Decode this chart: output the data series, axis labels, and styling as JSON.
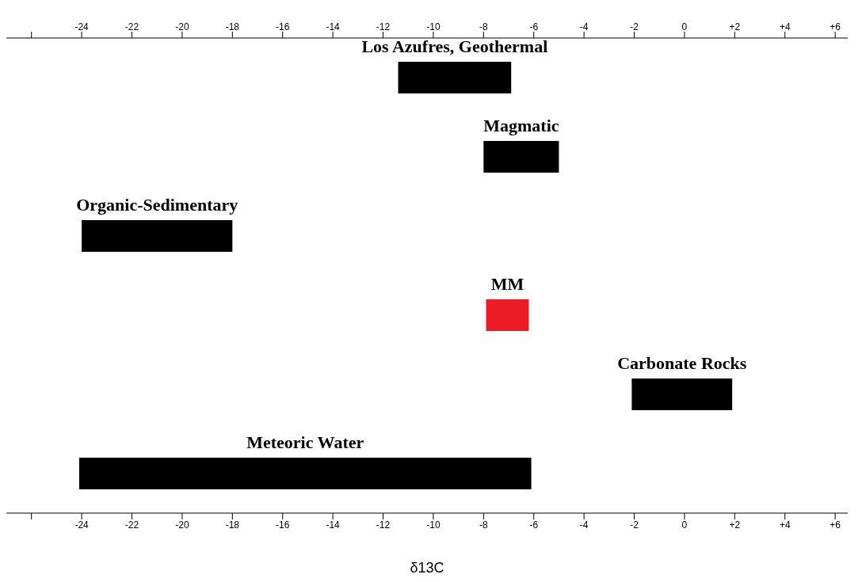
{
  "chart_data": {
    "type": "bar",
    "orientation": "horizontal",
    "xlabel": "δ13C",
    "categories": [
      "Los Azufres, Geothermal",
      "Magmatic",
      "Organic-Sedimentary",
      "MM",
      "Carbonate Rocks",
      "Meteoric Water"
    ],
    "base": [
      -11.4,
      -8,
      -24,
      -7.9,
      -2.1,
      -24.1
    ],
    "values": [
      4.5,
      3,
      6,
      1.7,
      4,
      18
    ],
    "colors": [
      "#000000",
      "#000000",
      "#000000",
      "#ed1c24",
      "#000000",
      "#000000"
    ],
    "xlim": [
      -27,
      6.5
    ],
    "xticks": [
      {
        "value": -26,
        "label": null
      },
      -24,
      -22,
      -20,
      -18,
      -16,
      -14,
      -12,
      -10,
      -8,
      -6,
      -4,
      -2,
      0,
      {
        "value": 2,
        "label": "+2"
      },
      {
        "value": 4,
        "label": "+4"
      },
      {
        "value": 6,
        "label": "+6"
      }
    ],
    "x2lim": [
      -27,
      6.5
    ],
    "x2ticks": [
      {
        "value": -26,
        "label": null
      },
      -24,
      -22,
      -20,
      -18,
      -16,
      -14,
      -12,
      -10,
      -8,
      -6,
      -4,
      -2,
      0,
      {
        "value": 2,
        "label": "+2"
      },
      {
        "value": 4,
        "label": "+4"
      },
      {
        "value": 6,
        "label": "+6"
      }
    ],
    "data_labels": false
  }
}
